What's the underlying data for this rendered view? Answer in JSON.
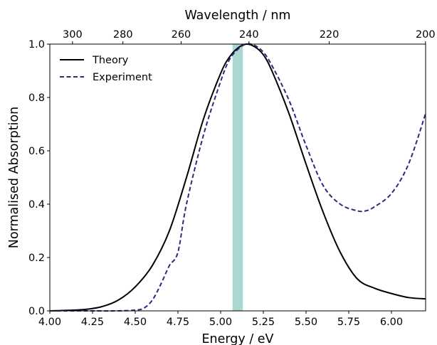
{
  "chart_data": {
    "type": "line",
    "xlabel": "Energy / eV",
    "ylabel": "Normalised Absorption",
    "top_xlabel": "Wavelength / nm",
    "xlim": [
      4.0,
      6.2
    ],
    "ylim": [
      0.0,
      1.0
    ],
    "x_ticks": [
      4.0,
      4.25,
      4.5,
      4.75,
      5.0,
      5.25,
      5.5,
      5.75,
      6.0
    ],
    "x_tick_labels": [
      "4.00",
      "4.25",
      "4.50",
      "4.75",
      "5.00",
      "5.25",
      "5.50",
      "5.75",
      "6.00"
    ],
    "y_ticks": [
      0.0,
      0.2,
      0.4,
      0.6,
      0.8,
      1.0
    ],
    "y_tick_labels": [
      "0.0",
      "0.2",
      "0.4",
      "0.6",
      "0.8",
      "1.0"
    ],
    "top_ticks_nm": [
      300,
      280,
      260,
      240,
      220,
      200
    ],
    "top_tick_labels": [
      "300",
      "280",
      "260",
      "240",
      "220",
      "200"
    ],
    "highlight_band": {
      "x_start": 5.07,
      "x_end": 5.13,
      "color": "#a8d8d0"
    },
    "legend_position": "top-left",
    "grid": false,
    "series": [
      {
        "name": "Theory",
        "style": "solid",
        "color": "#000000",
        "x": [
          4.0,
          4.1,
          4.2,
          4.3,
          4.4,
          4.5,
          4.6,
          4.7,
          4.8,
          4.9,
          5.0,
          5.05,
          5.1,
          5.15,
          5.2,
          5.25,
          5.3,
          5.4,
          5.5,
          5.6,
          5.7,
          5.8,
          5.9,
          6.0,
          6.1,
          6.2
        ],
        "y": [
          0.0,
          0.002,
          0.005,
          0.015,
          0.04,
          0.09,
          0.17,
          0.3,
          0.5,
          0.72,
          0.89,
          0.95,
          0.985,
          1.0,
          0.99,
          0.96,
          0.9,
          0.74,
          0.55,
          0.37,
          0.22,
          0.12,
          0.085,
          0.065,
          0.05,
          0.045
        ]
      },
      {
        "name": "Experiment",
        "style": "dashed",
        "color": "#2b2b80",
        "x": [
          4.0,
          4.2,
          4.4,
          4.5,
          4.55,
          4.6,
          4.65,
          4.7,
          4.75,
          4.8,
          4.9,
          5.0,
          5.05,
          5.1,
          5.15,
          5.2,
          5.25,
          5.3,
          5.4,
          5.5,
          5.6,
          5.7,
          5.8,
          5.85,
          5.9,
          6.0,
          6.1,
          6.2
        ],
        "y": [
          0.0,
          0.0,
          0.0,
          0.003,
          0.01,
          0.04,
          0.1,
          0.17,
          0.22,
          0.4,
          0.66,
          0.86,
          0.94,
          0.98,
          1.0,
          0.995,
          0.97,
          0.92,
          0.79,
          0.62,
          0.47,
          0.4,
          0.375,
          0.375,
          0.39,
          0.44,
          0.55,
          0.74
        ]
      }
    ]
  }
}
